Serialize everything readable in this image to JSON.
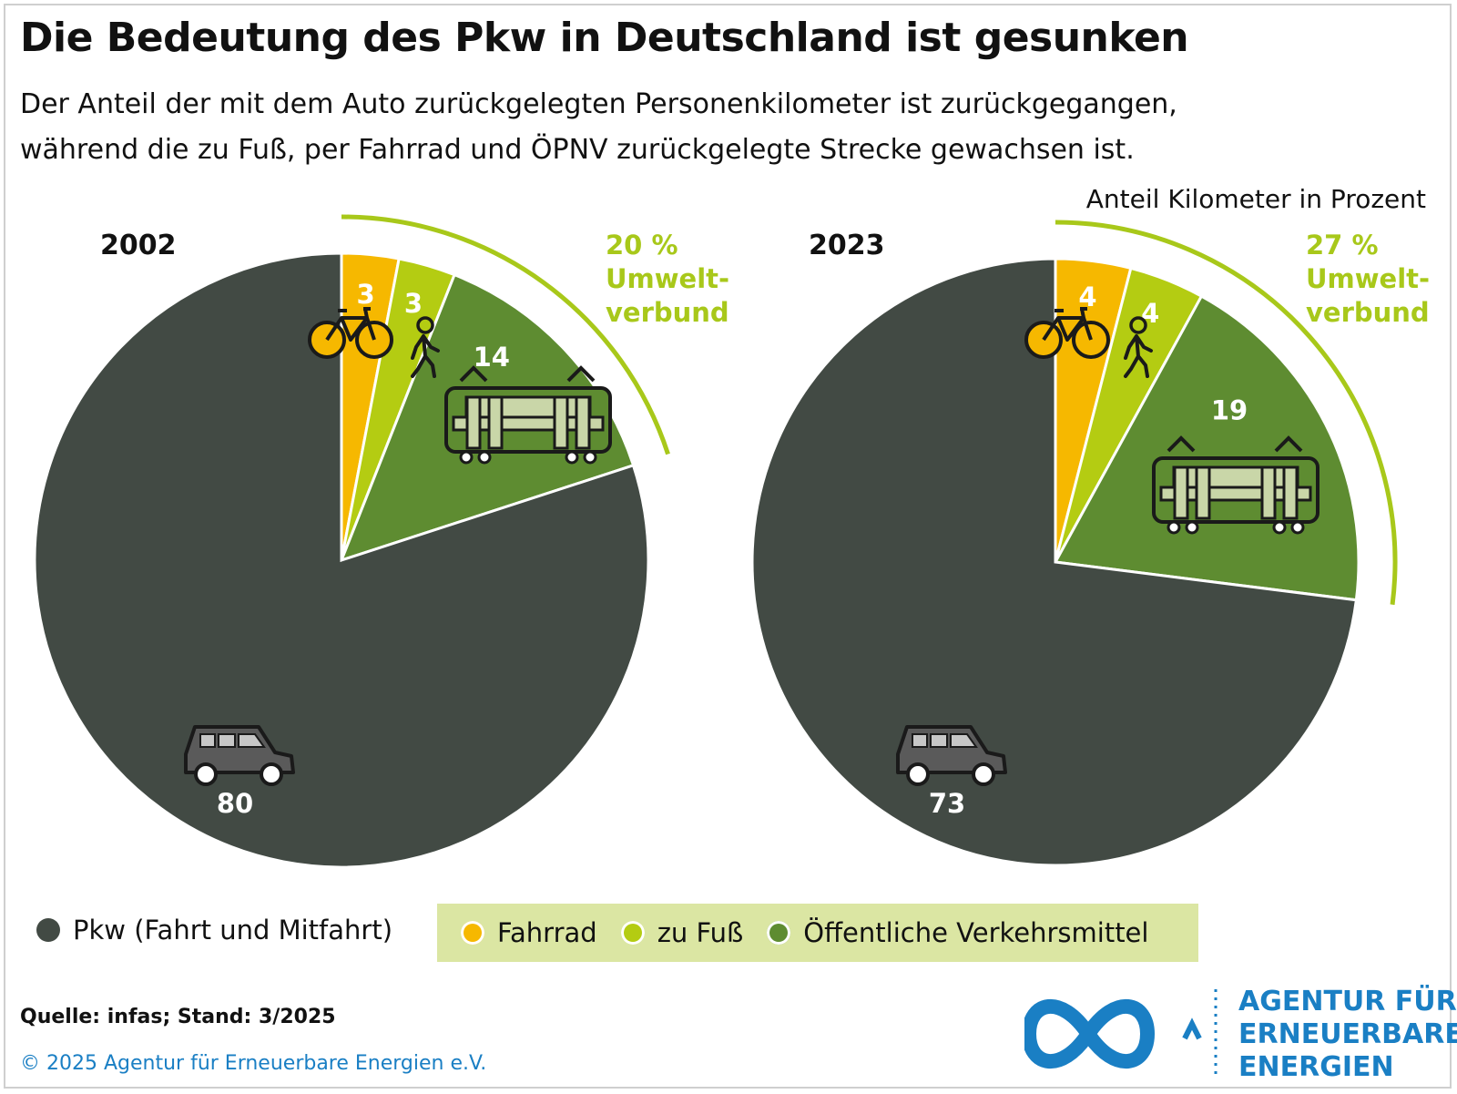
{
  "title": "Die Bedeutung des Pkw in Deutschland ist gesunken",
  "subtitle_line1": "Der Anteil der mit dem Auto zurückgelegten Personenkilometer ist zurückgegangen,",
  "subtitle_line2": "während die zu Fuß, per Fahrrad und ÖPNV zurückgelegte Strecke gewachsen ist.",
  "unit_label": "Anteil Kilometer in Prozent",
  "colors": {
    "pkw": "#424a44",
    "fahrrad": "#f6b800",
    "fuss": "#b4cc12",
    "oepnv": "#5e8c31",
    "umwelt": "#a8c81a",
    "brand": "#1a7fc4"
  },
  "chart_data": [
    {
      "type": "pie",
      "year": "2002",
      "slices": [
        {
          "name": "Fahrrad",
          "value": 3,
          "label": "3"
        },
        {
          "name": "zu Fuß",
          "value": 3,
          "label": "3"
        },
        {
          "name": "Öffentliche Verkehrsmittel",
          "value": 14,
          "label": "14"
        },
        {
          "name": "Pkw (Fahrt und Mitfahrt)",
          "value": 80,
          "label": "80"
        }
      ],
      "umweltverbund_value": "20 %",
      "umweltverbund_line1": "Umwelt-",
      "umweltverbund_line2": "verbund"
    },
    {
      "type": "pie",
      "year": "2023",
      "slices": [
        {
          "name": "Fahrrad",
          "value": 4,
          "label": "4"
        },
        {
          "name": "zu Fuß",
          "value": 4,
          "label": "4"
        },
        {
          "name": "Öffentliche Verkehrsmittel",
          "value": 19,
          "label": "19"
        },
        {
          "name": "Pkw (Fahrt und Mitfahrt)",
          "value": 73,
          "label": "73"
        }
      ],
      "umweltverbund_value": "27 %",
      "umweltverbund_line1": "Umwelt-",
      "umweltverbund_line2": "verbund"
    }
  ],
  "legend": {
    "pkw": "Pkw (Fahrt und Mitfahrt)",
    "fahrrad": "Fahrrad",
    "fuss": "zu Fuß",
    "oepnv": "Öffentliche Verkehrsmittel"
  },
  "icons": [
    "bicycle-icon",
    "pedestrian-icon",
    "tram-icon",
    "car-icon"
  ],
  "source": "Quelle: infas; Stand: 3/2025",
  "copyright": "© 2025 Agentur für Erneuerbare Energien e.V.",
  "logo": {
    "line1": "AGENTUR FÜR",
    "line2": "ERNEUERBARE",
    "line3": "ENERGIEN"
  }
}
